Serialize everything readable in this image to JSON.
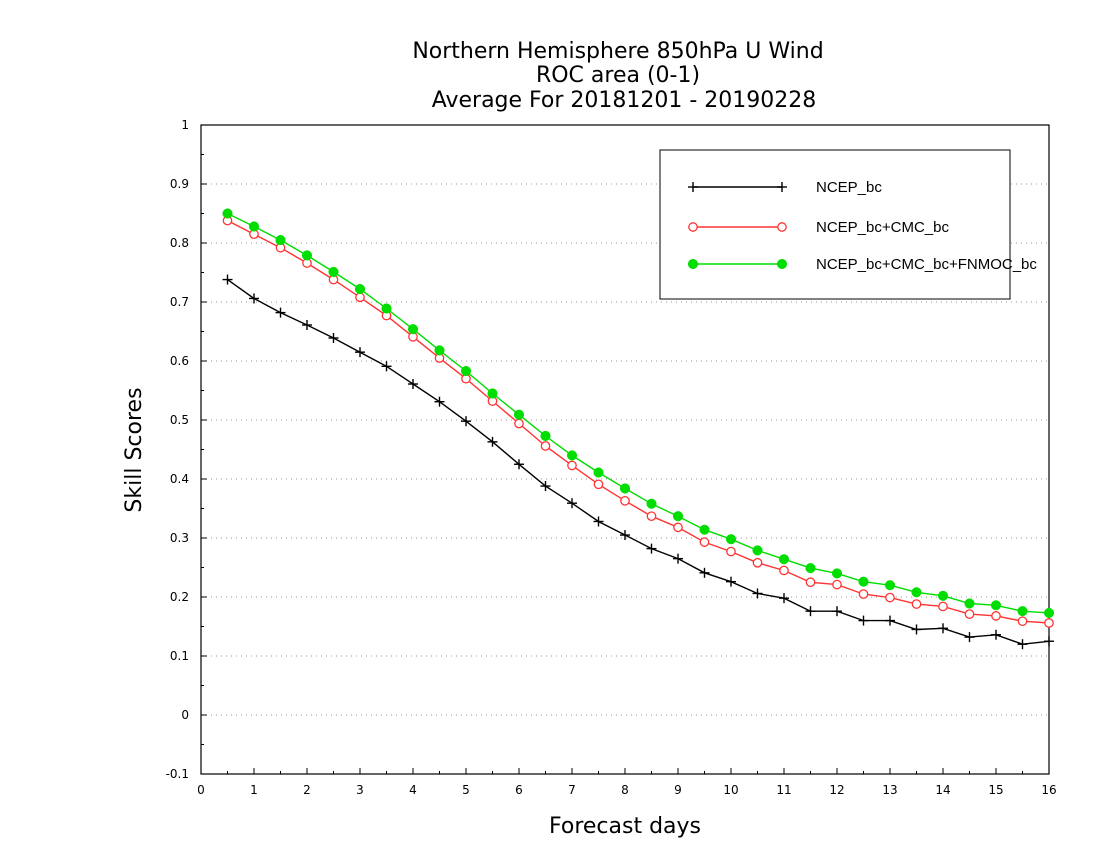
{
  "chart_data": {
    "type": "line",
    "title": [
      "Northern Hemisphere 850hPa U Wind",
      "ROC area (0-1)",
      "Average For 20181201 - 20190228"
    ],
    "xlabel": "Forecast days",
    "ylabel": "Skill Scores",
    "xlim": [
      0,
      16
    ],
    "ylim": [
      -0.1,
      1
    ],
    "xticks": [
      0,
      1,
      2,
      3,
      4,
      5,
      6,
      7,
      8,
      9,
      10,
      11,
      12,
      13,
      14,
      15,
      16
    ],
    "yticks": [
      -0.1,
      0,
      0.1,
      0.2,
      0.3,
      0.4,
      0.5,
      0.6,
      0.7,
      0.8,
      0.9,
      1
    ],
    "ytick_labels": [
      "-0.1",
      "0",
      "0.1",
      "0.2",
      "0.3",
      "0.4",
      "0.5",
      "0.6",
      "0.7",
      "0.8",
      "0.9",
      "1"
    ],
    "grid": "horizontal dotted",
    "legend_position": "top-right",
    "x": [
      0.5,
      1,
      1.5,
      2,
      2.5,
      3,
      3.5,
      4,
      4.5,
      5,
      5.5,
      6,
      6.5,
      7,
      7.5,
      8,
      8.5,
      9,
      9.5,
      10,
      10.5,
      11,
      11.5,
      12,
      12.5,
      13,
      13.5,
      14,
      14.5,
      15,
      15.5,
      16
    ],
    "series": [
      {
        "name": "NCEP_bc",
        "color": "#000000",
        "marker": "plus",
        "values": [
          0.738,
          0.706,
          0.682,
          0.661,
          0.639,
          0.615,
          0.591,
          0.561,
          0.531,
          0.498,
          0.463,
          0.425,
          0.388,
          0.359,
          0.328,
          0.305,
          0.282,
          0.265,
          0.241,
          0.226,
          0.206,
          0.198,
          0.176,
          0.176,
          0.16,
          0.16,
          0.145,
          0.147,
          0.132,
          0.136,
          0.12,
          0.125
        ]
      },
      {
        "name": "NCEP_bc+CMC_bc",
        "color": "#ff3333",
        "marker": "open-circle",
        "values": [
          0.838,
          0.815,
          0.792,
          0.766,
          0.738,
          0.708,
          0.677,
          0.641,
          0.605,
          0.57,
          0.532,
          0.494,
          0.456,
          0.423,
          0.391,
          0.363,
          0.337,
          0.318,
          0.293,
          0.277,
          0.258,
          0.245,
          0.225,
          0.221,
          0.205,
          0.199,
          0.188,
          0.184,
          0.171,
          0.168,
          0.159,
          0.156
        ]
      },
      {
        "name": "NCEP_bc+CMC_bc+FNMOC_bc",
        "color": "#00dd00",
        "marker": "filled-circle",
        "values": [
          0.85,
          0.828,
          0.805,
          0.779,
          0.751,
          0.722,
          0.689,
          0.654,
          0.618,
          0.583,
          0.545,
          0.509,
          0.473,
          0.44,
          0.411,
          0.384,
          0.358,
          0.337,
          0.314,
          0.298,
          0.279,
          0.264,
          0.249,
          0.24,
          0.226,
          0.22,
          0.208,
          0.202,
          0.189,
          0.186,
          0.176,
          0.173
        ]
      }
    ]
  }
}
